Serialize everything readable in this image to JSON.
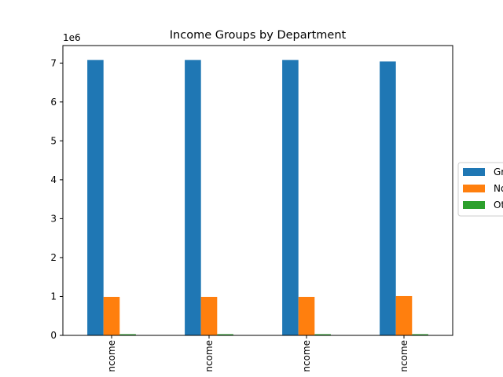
{
  "chart_data": {
    "type": "bar",
    "title": "Income Groups by Department",
    "xlabel": "",
    "ylabel": "",
    "y_offset_label": "1e6",
    "ylim": [
      0,
      7.45
    ],
    "yticks": [
      0,
      1,
      2,
      3,
      4,
      5,
      6,
      7
    ],
    "categories": [
      "ncome",
      "ncome",
      "ncome",
      "ncome"
    ],
    "x_tick_rotation": "vertical",
    "grid": false,
    "legend": "center-right, outside plot (clipped)",
    "series": [
      {
        "name": "Gr",
        "color": "#1f77b4",
        "values": [
          7.08,
          7.08,
          7.08,
          7.04
        ]
      },
      {
        "name": "No",
        "color": "#ff7f0e",
        "values": [
          0.99,
          0.99,
          0.99,
          1.01
        ]
      },
      {
        "name": "Ot",
        "color": "#2ca02c",
        "values": [
          0.03,
          0.03,
          0.03,
          0.03
        ]
      }
    ]
  }
}
